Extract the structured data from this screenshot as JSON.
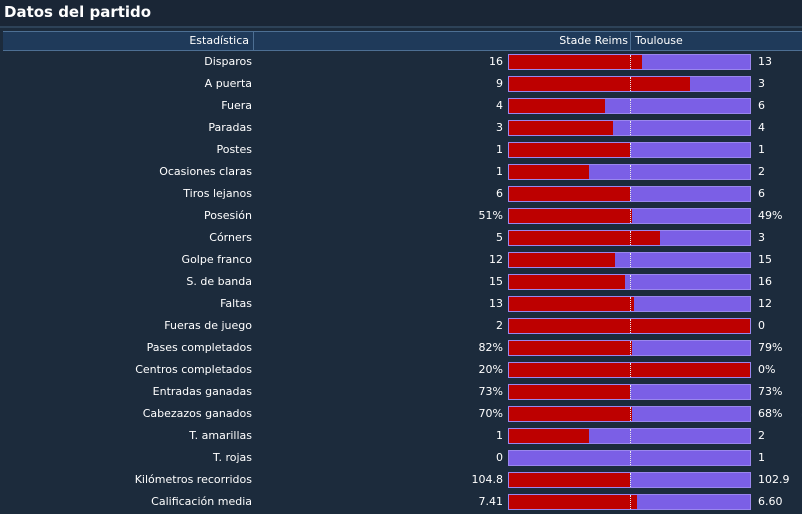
{
  "title": "Datos del partido",
  "header": {
    "stat": "Estadística",
    "home": "Stade Reims",
    "away": "Toulouse"
  },
  "colors": {
    "home_bar": "#bd0000",
    "away_bar": "#7b5fe6"
  },
  "stats": [
    {
      "label": "Disparos",
      "home": "16",
      "away": "13",
      "home_share": 0.55
    },
    {
      "label": "A puerta",
      "home": "9",
      "away": "3",
      "home_share": 0.75
    },
    {
      "label": "Fuera",
      "home": "4",
      "away": "6",
      "home_share": 0.4
    },
    {
      "label": "Paradas",
      "home": "3",
      "away": "4",
      "home_share": 0.43
    },
    {
      "label": "Postes",
      "home": "1",
      "away": "1",
      "home_share": 0.5
    },
    {
      "label": "Ocasiones claras",
      "home": "1",
      "away": "2",
      "home_share": 0.33
    },
    {
      "label": "Tiros lejanos",
      "home": "6",
      "away": "6",
      "home_share": 0.5
    },
    {
      "label": "Posesión",
      "home": "51%",
      "away": "49%",
      "home_share": 0.51
    },
    {
      "label": "Córners",
      "home": "5",
      "away": "3",
      "home_share": 0.625
    },
    {
      "label": "Golpe franco",
      "home": "12",
      "away": "15",
      "home_share": 0.44
    },
    {
      "label": "S. de banda",
      "home": "15",
      "away": "16",
      "home_share": 0.48
    },
    {
      "label": "Faltas",
      "home": "13",
      "away": "12",
      "home_share": 0.52
    },
    {
      "label": "Fueras de juego",
      "home": "2",
      "away": "0",
      "home_share": 1.0
    },
    {
      "label": "Pases completados",
      "home": "82%",
      "away": "79%",
      "home_share": 0.51
    },
    {
      "label": "Centros completados",
      "home": "20%",
      "away": "0%",
      "home_share": 1.0
    },
    {
      "label": "Entradas ganadas",
      "home": "73%",
      "away": "73%",
      "home_share": 0.5
    },
    {
      "label": "Cabezazos ganados",
      "home": "70%",
      "away": "68%",
      "home_share": 0.51
    },
    {
      "label": "T. amarillas",
      "home": "1",
      "away": "2",
      "home_share": 0.33
    },
    {
      "label": "T. rojas",
      "home": "0",
      "away": "1",
      "home_share": 0.0
    },
    {
      "label": "Kilómetros recorridos",
      "home": "104.8",
      "away": "102.9",
      "home_share": 0.5
    },
    {
      "label": "Calificación media",
      "home": "7.41",
      "away": "6.60",
      "home_share": 0.53
    }
  ]
}
